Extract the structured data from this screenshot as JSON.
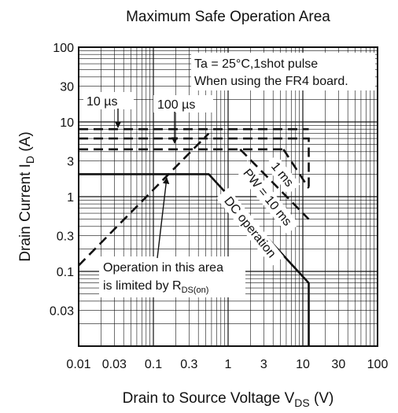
{
  "chart_data": {
    "type": "line",
    "title": "Maximum Safe Operation Area",
    "xlabel": "Drain to Source Voltage",
    "xlabel_symbol": "V",
    "xlabel_sub": "DS",
    "xlabel_unit": "(V)",
    "ylabel": "Drain Current",
    "ylabel_symbol": "I",
    "ylabel_sub": "D",
    "ylabel_unit": "(A)",
    "x_scale": "log",
    "y_scale": "log",
    "xlim": [
      0.01,
      100
    ],
    "ylim": [
      0.01,
      100
    ],
    "grid": true,
    "x_ticks": [
      0.01,
      0.03,
      0.1,
      0.3,
      1,
      3,
      10,
      30,
      100
    ],
    "x_tick_labels": [
      "0.01",
      "0.03",
      "0.1",
      "0.3",
      "1",
      "3",
      "10",
      "30",
      "100"
    ],
    "y_ticks": [
      0.03,
      0.1,
      0.3,
      1,
      3,
      10,
      30,
      100
    ],
    "y_tick_labels": [
      "0.03",
      "0.1",
      "0.3",
      "1",
      "3",
      "10",
      "30",
      "100"
    ],
    "series": [
      {
        "name": "DC operation",
        "style": "solid",
        "points": [
          [
            0.01,
            2
          ],
          [
            0.55,
            2
          ],
          [
            12,
            0.07
          ],
          [
            12,
            0.01
          ]
        ]
      },
      {
        "name": "PW = 10 ms",
        "style": "dashed",
        "points": [
          [
            1.45,
            4.3
          ],
          [
            12,
            0.5
          ]
        ]
      },
      {
        "name": "1 ms",
        "style": "dashed",
        "points": [
          [
            5.5,
            4.3
          ],
          [
            12,
            1.3
          ]
        ]
      },
      {
        "name": "",
        "style": "dashed",
        "points": [
          [
            0.01,
            4.3
          ],
          [
            5.5,
            4.3
          ]
        ]
      },
      {
        "name": "",
        "style": "dashed",
        "points": [
          [
            0.01,
            6
          ],
          [
            12,
            6
          ],
          [
            12,
            1.3
          ]
        ]
      },
      {
        "name": "",
        "style": "dashed",
        "points": [
          [
            0.01,
            8
          ],
          [
            12,
            8
          ]
        ]
      },
      {
        "name": "",
        "style": "dashed",
        "points": [
          [
            0.01,
            0.12
          ],
          [
            0.55,
            7
          ]
        ]
      }
    ],
    "annotations": {
      "conditions_line1": "Ta = 25°C,1shot pulse",
      "conditions_line2": "When using the FR4 board.",
      "label_10us": "10 µs",
      "label_100us": "100 µs",
      "label_1ms": "1 ms",
      "label_pw10ms": "PW = 10 ms",
      "label_dc": "DC operation",
      "rds_line1": "Operation in this area",
      "rds_line2": "is limited by R",
      "rds_sub": "DS(on)"
    }
  }
}
